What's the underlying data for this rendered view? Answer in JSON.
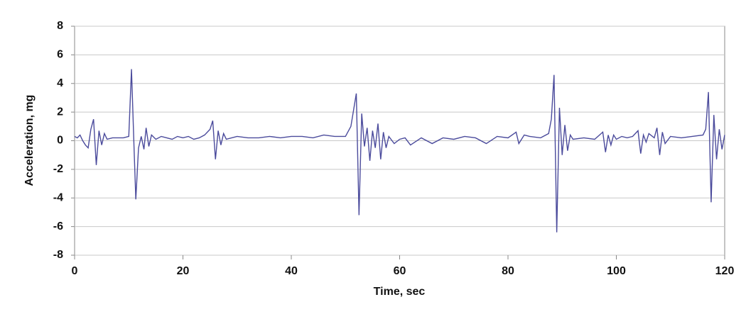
{
  "chart_data": {
    "type": "line",
    "x_label": "Time, sec",
    "y_label": "Acceleration, mg",
    "x": [
      0,
      0.5,
      1,
      1.5,
      2,
      2.5,
      3,
      3.5,
      4,
      4.5,
      5,
      5.5,
      6,
      7,
      8,
      9,
      10,
      10.5,
      11,
      11.3,
      11.8,
      12.3,
      12.8,
      13.2,
      13.7,
      14.2,
      15,
      16,
      17,
      18,
      19,
      20,
      21,
      22,
      23,
      24,
      25,
      25.5,
      26,
      26.5,
      27,
      27.5,
      28,
      30,
      32,
      34,
      36,
      38,
      40,
      42,
      44,
      46,
      48,
      50,
      51,
      52,
      52.5,
      53,
      53.5,
      54,
      54.5,
      55,
      55.5,
      56,
      56.5,
      57,
      57.5,
      58,
      59,
      60,
      61,
      62,
      64,
      66,
      68,
      70,
      72,
      74,
      76,
      78,
      80,
      81.5,
      82,
      83,
      84,
      86,
      87.5,
      88,
      88.5,
      89,
      89.5,
      90,
      90.5,
      91,
      91.5,
      92,
      94,
      96,
      97.5,
      98,
      98.5,
      99,
      99.5,
      100,
      101,
      102,
      103,
      104,
      104.5,
      105,
      105.5,
      106,
      107,
      107.5,
      108,
      108.5,
      109,
      110,
      112,
      114,
      116,
      116.5,
      117,
      117.5,
      118,
      118.5,
      119,
      119.5,
      120
    ],
    "series": [
      {
        "color": "#4b4b9c",
        "values": [
          0.3,
          0.2,
          0.4,
          0,
          -0.3,
          -0.5,
          0.8,
          1.5,
          -1.7,
          0.7,
          -0.3,
          0.5,
          0.1,
          0.2,
          0.2,
          0.2,
          0.3,
          5.0,
          -0.8,
          -4.1,
          -0.5,
          0.3,
          -0.6,
          0.9,
          -0.4,
          0.4,
          0.1,
          0.3,
          0.2,
          0.1,
          0.3,
          0.2,
          0.3,
          0.1,
          0.2,
          0.4,
          0.8,
          1.4,
          -1.3,
          0.7,
          -0.3,
          0.5,
          0.1,
          0.3,
          0.2,
          0.2,
          0.3,
          0.2,
          0.3,
          0.3,
          0.2,
          0.4,
          0.3,
          0.3,
          1.0,
          3.3,
          -5.2,
          1.9,
          -0.4,
          0.9,
          -1.4,
          0.7,
          -0.5,
          1.2,
          -1.3,
          0.6,
          -0.5,
          0.3,
          -0.2,
          0.1,
          0.2,
          -0.3,
          0.2,
          -0.2,
          0.2,
          0.1,
          0.3,
          0.2,
          -0.2,
          0.3,
          0.2,
          0.6,
          -0.2,
          0.4,
          0.3,
          0.2,
          0.5,
          1.5,
          4.6,
          -6.4,
          2.3,
          -1.0,
          1.1,
          -0.7,
          0.4,
          0.1,
          0.2,
          0.1,
          0.6,
          -0.8,
          0.4,
          -0.3,
          0.4,
          0.1,
          0.3,
          0.2,
          0.3,
          0.7,
          -0.9,
          0.4,
          -0.1,
          0.5,
          0.2,
          0.9,
          -1.0,
          0.6,
          -0.2,
          0.3,
          0.2,
          0.3,
          0.4,
          0.8,
          3.4,
          -4.3,
          1.8,
          -1.3,
          0.8,
          -0.6,
          0.4
        ]
      }
    ],
    "xlim": [
      0,
      120
    ],
    "xticks": [
      0,
      20,
      40,
      60,
      80,
      100,
      120
    ],
    "ylim": [
      -8,
      8
    ],
    "yticks": [
      -8,
      -6,
      -4,
      -2,
      0,
      2,
      4,
      6,
      8
    ],
    "grid": true
  }
}
